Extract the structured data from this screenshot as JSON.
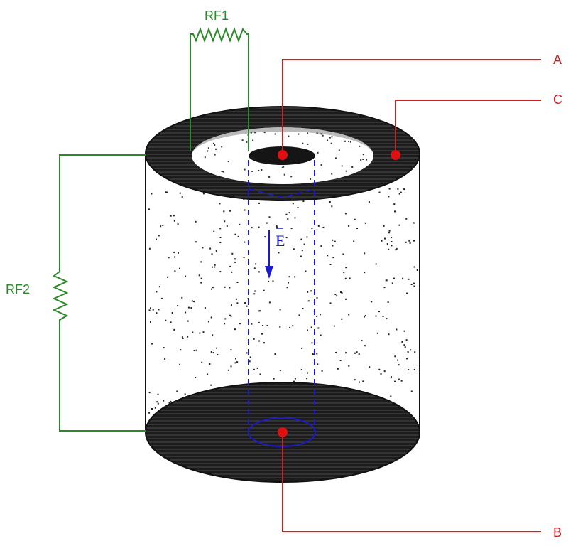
{
  "labels": {
    "rf1": "RF1",
    "rf2": "RF2",
    "a": "A",
    "b": "B",
    "c": "C",
    "field": "E"
  },
  "colors": {
    "wire_green": "#2a8a2a",
    "wire_red": "#cc2222",
    "field_blue": "#1a1acc",
    "electrode_dark": "#1a1a1a",
    "background": "#ffffff"
  }
}
